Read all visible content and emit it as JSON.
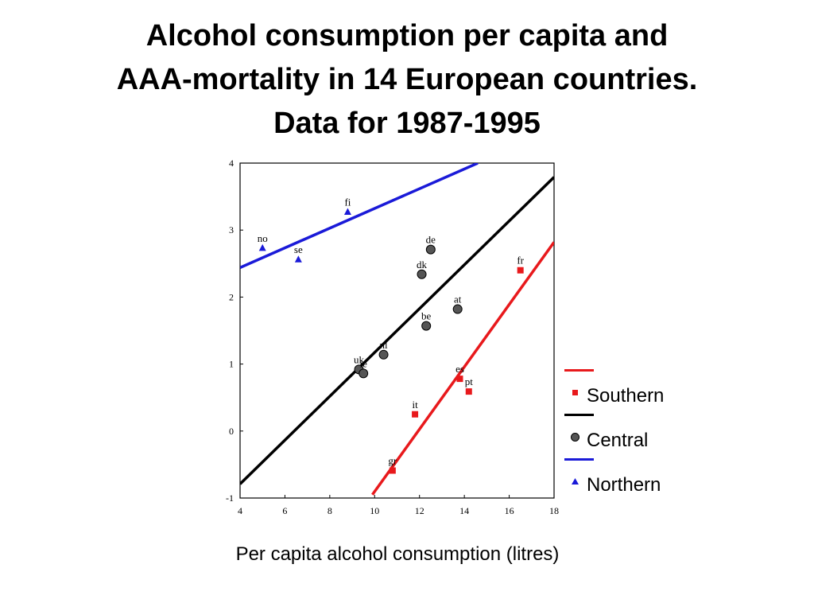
{
  "title_lines": [
    "Alcohol consumption per capita and",
    "AAA-mortality in 14 European countries.",
    "Data for 1987-1995"
  ],
  "colors": {
    "Southern": "#e8191c",
    "Central": "#000000",
    "Northern": "#1a1ad8"
  },
  "chart_data": {
    "type": "scatter",
    "title": "Alcohol consumption per capita and AAA-mortality in 14 European countries. Data for 1987-1995",
    "xlabel": "Per capita alcohol consumption (litres)",
    "ylabel": "",
    "xlim": [
      4,
      18
    ],
    "ylim": [
      -1,
      4
    ],
    "xticks": [
      4,
      6,
      8,
      10,
      12,
      14,
      16,
      18
    ],
    "yticks": [
      -1,
      0,
      1,
      2,
      3,
      4
    ],
    "legend_position": "right",
    "series": [
      {
        "name": "Southern",
        "marker": "square",
        "points": [
          {
            "label": "fr",
            "x": 16.5,
            "y": 2.4
          },
          {
            "label": "es",
            "x": 13.8,
            "y": 0.78
          },
          {
            "label": "pt",
            "x": 14.2,
            "y": 0.59
          },
          {
            "label": "it",
            "x": 11.8,
            "y": 0.25
          },
          {
            "label": "gr",
            "x": 10.8,
            "y": -0.59
          }
        ],
        "fit": {
          "x": [
            9.9,
            18
          ],
          "y": [
            -0.95,
            2.82
          ]
        }
      },
      {
        "name": "Central",
        "marker": "circle",
        "points": [
          {
            "label": "de",
            "x": 12.5,
            "y": 2.71
          },
          {
            "label": "dk",
            "x": 12.1,
            "y": 2.34
          },
          {
            "label": "at",
            "x": 13.7,
            "y": 1.82
          },
          {
            "label": "be",
            "x": 12.3,
            "y": 1.57
          },
          {
            "label": "nl",
            "x": 10.4,
            "y": 1.14
          },
          {
            "label": "uk",
            "x": 9.3,
            "y": 0.92
          },
          {
            "label": "ie",
            "x": 9.5,
            "y": 0.86
          }
        ],
        "fit": {
          "x": [
            4,
            18
          ],
          "y": [
            -0.79,
            3.79
          ]
        }
      },
      {
        "name": "Northern",
        "marker": "triangle",
        "points": [
          {
            "label": "fi",
            "x": 8.8,
            "y": 3.27
          },
          {
            "label": "no",
            "x": 5.0,
            "y": 2.73
          },
          {
            "label": "se",
            "x": 6.6,
            "y": 2.56
          }
        ],
        "fit": {
          "x": [
            4,
            14.6
          ],
          "y": [
            2.44,
            4.0
          ]
        }
      }
    ]
  }
}
